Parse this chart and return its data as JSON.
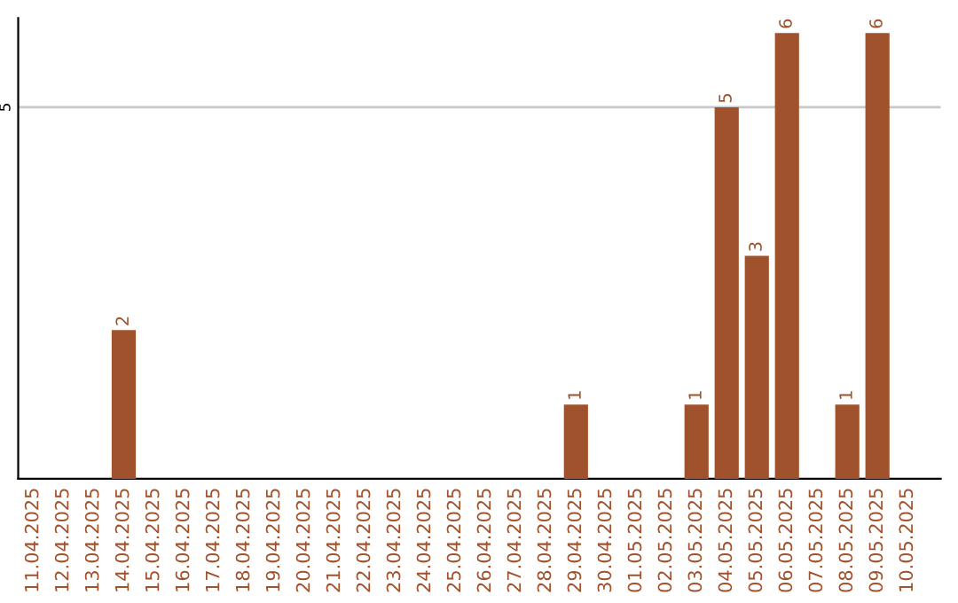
{
  "chart_data": {
    "type": "bar",
    "categories": [
      "11.04.2025",
      "12.04.2025",
      "13.04.2025",
      "14.04.2025",
      "15.04.2025",
      "16.04.2025",
      "17.04.2025",
      "18.04.2025",
      "19.04.2025",
      "20.04.2025",
      "21.04.2025",
      "22.04.2025",
      "23.04.2025",
      "24.04.2025",
      "25.04.2025",
      "26.04.2025",
      "27.04.2025",
      "28.04.2025",
      "29.04.2025",
      "30.04.2025",
      "01.05.2025",
      "02.05.2025",
      "03.05.2025",
      "04.05.2025",
      "05.05.2025",
      "06.05.2025",
      "07.05.2025",
      "08.05.2025",
      "09.05.2025",
      "10.05.2025"
    ],
    "values": [
      0,
      0,
      0,
      2,
      0,
      0,
      0,
      0,
      0,
      0,
      0,
      0,
      0,
      0,
      0,
      0,
      0,
      0,
      1,
      0,
      0,
      0,
      1,
      5,
      3,
      6,
      0,
      1,
      6,
      0
    ],
    "value_labels": [
      null,
      null,
      null,
      "2",
      null,
      null,
      null,
      null,
      null,
      null,
      null,
      null,
      null,
      null,
      null,
      null,
      null,
      null,
      "1",
      null,
      null,
      null,
      "1",
      "5",
      "3",
      "6",
      null,
      "1",
      "6",
      null
    ],
    "color": "#a0522d",
    "ylim": [
      0,
      6.2
    ],
    "yticks": [
      5
    ],
    "grid": "y",
    "legend": false
  }
}
